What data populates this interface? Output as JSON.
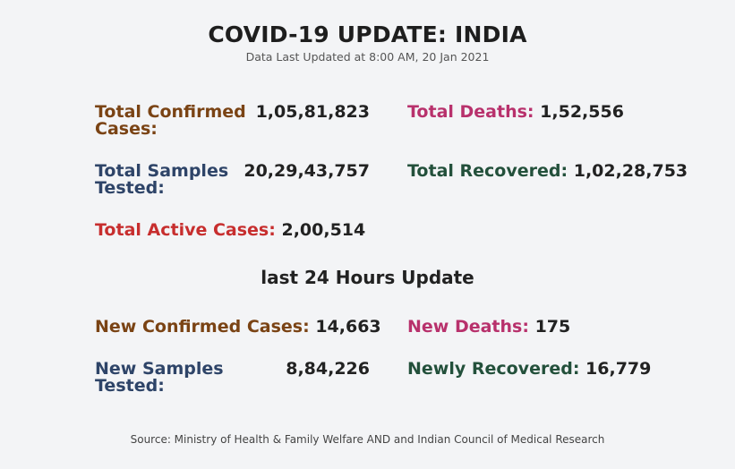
{
  "header": {
    "title": "COVID-19 UPDATE: INDIA",
    "subtitle": "Data Last Updated at 8:00 AM, 20 Jan 2021"
  },
  "totals": {
    "confirmed": {
      "label": "Total Confirmed Cases:",
      "value": "1,05,81,823",
      "color": "#7a4314"
    },
    "deaths": {
      "label": "Total Deaths:",
      "value": "1,52,556",
      "color": "#b8316c"
    },
    "samples": {
      "label": "Total Samples Tested:",
      "value": "20,29,43,757",
      "color": "#2e4468"
    },
    "recovered": {
      "label": "Total Recovered:",
      "value": "1,02,28,753",
      "color": "#23503b"
    },
    "active": {
      "label": "Total Active Cases:",
      "value": "2,00,514",
      "color": "#c72e2e"
    }
  },
  "last24": {
    "title": "last 24 Hours Update",
    "confirmed": {
      "label": "New Confirmed Cases:",
      "value": "14,663"
    },
    "deaths": {
      "label": "New Deaths:",
      "value": "175"
    },
    "samples": {
      "label": "New Samples Tested:",
      "value": "8,84,226"
    },
    "recovered": {
      "label": "Newly Recovered:",
      "value": "16,779"
    }
  },
  "footer": {
    "source": "Source: Ministry of Health & Family Welfare AND and Indian Council of Medical Research"
  }
}
